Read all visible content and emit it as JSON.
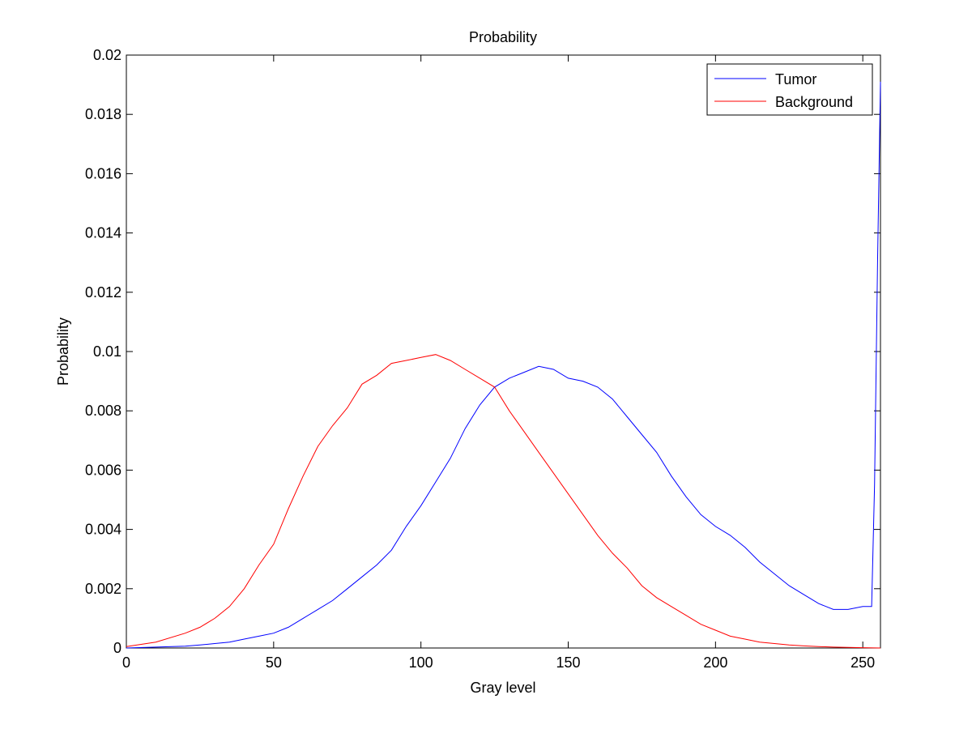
{
  "chart_data": {
    "type": "line",
    "title": "Probability",
    "xlabel": "Gray level",
    "ylabel": "Probability",
    "xlim": [
      0,
      256
    ],
    "ylim": [
      0,
      0.02
    ],
    "xticks": [
      0,
      50,
      100,
      150,
      200,
      250
    ],
    "xtick_labels": [
      "0",
      "50",
      "100",
      "150",
      "200",
      "250"
    ],
    "yticks": [
      0,
      0.002,
      0.004,
      0.006,
      0.008,
      0.01,
      0.012,
      0.014,
      0.016,
      0.018,
      0.02
    ],
    "ytick_labels": [
      "0",
      "0.002",
      "0.004",
      "0.006",
      "0.008",
      "0.01",
      "0.012",
      "0.014",
      "0.016",
      "0.018",
      "0.02"
    ],
    "grid": false,
    "legend_position": "top-right",
    "series": [
      {
        "name": "Tumor",
        "color": "#0000ff",
        "x": [
          0,
          10,
          20,
          25,
          30,
          35,
          40,
          45,
          50,
          55,
          60,
          65,
          70,
          75,
          80,
          85,
          90,
          95,
          100,
          105,
          110,
          115,
          120,
          125,
          130,
          135,
          140,
          145,
          150,
          155,
          160,
          165,
          170,
          175,
          180,
          185,
          190,
          195,
          200,
          205,
          210,
          215,
          220,
          225,
          230,
          235,
          240,
          245,
          250,
          252,
          253,
          254,
          255,
          256
        ],
        "values": [
          0,
          3e-05,
          6e-05,
          0.0001,
          0.00015,
          0.0002,
          0.0003,
          0.0004,
          0.0005,
          0.0007,
          0.001,
          0.0013,
          0.0016,
          0.002,
          0.0024,
          0.0028,
          0.0033,
          0.0041,
          0.0048,
          0.0056,
          0.0064,
          0.0074,
          0.0082,
          0.0088,
          0.0091,
          0.0093,
          0.0095,
          0.0094,
          0.0091,
          0.009,
          0.0088,
          0.0084,
          0.0078,
          0.0072,
          0.0066,
          0.0058,
          0.0051,
          0.0045,
          0.0041,
          0.0038,
          0.0034,
          0.0029,
          0.0025,
          0.0021,
          0.0018,
          0.0015,
          0.0013,
          0.0013,
          0.0014,
          0.0014,
          0.0014,
          0.0055,
          0.013,
          0.0191
        ]
      },
      {
        "name": "Background",
        "color": "#ff0000",
        "x": [
          0,
          10,
          20,
          25,
          30,
          35,
          40,
          45,
          50,
          55,
          60,
          65,
          70,
          75,
          80,
          85,
          90,
          95,
          100,
          105,
          110,
          115,
          120,
          125,
          130,
          135,
          140,
          145,
          150,
          155,
          160,
          165,
          170,
          175,
          180,
          185,
          190,
          195,
          200,
          205,
          210,
          215,
          220,
          225,
          230,
          235,
          240,
          245,
          250,
          256
        ],
        "values": [
          5e-05,
          0.0002,
          0.0005,
          0.0007,
          0.001,
          0.0014,
          0.002,
          0.0028,
          0.0035,
          0.0047,
          0.0058,
          0.0068,
          0.0075,
          0.0081,
          0.0089,
          0.0092,
          0.0096,
          0.0097,
          0.0098,
          0.0099,
          0.0097,
          0.0094,
          0.0091,
          0.0088,
          0.008,
          0.0073,
          0.0066,
          0.0059,
          0.0052,
          0.0045,
          0.0038,
          0.0032,
          0.0027,
          0.0021,
          0.0017,
          0.0014,
          0.0011,
          0.0008,
          0.0006,
          0.0004,
          0.0003,
          0.0002,
          0.00015,
          0.0001,
          7e-05,
          5e-05,
          3e-05,
          2e-05,
          1e-05,
          0
        ]
      }
    ]
  }
}
